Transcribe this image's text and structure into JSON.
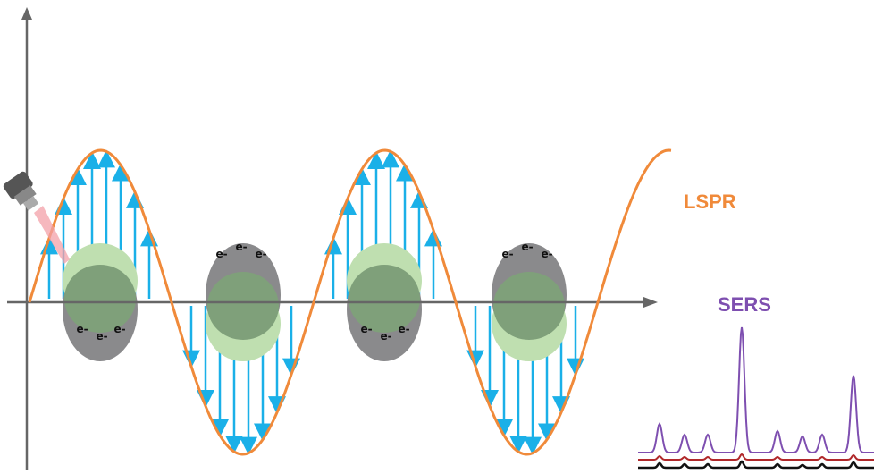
{
  "labels": {
    "lspr": "LSPR",
    "sers": "SERS"
  },
  "particles": [
    {
      "electrons": [
        "e-",
        "e-",
        "e-"
      ]
    },
    {
      "electrons": [
        "e-",
        "e-",
        "e-"
      ]
    },
    {
      "electrons": [
        "e-",
        "e-",
        "e-"
      ]
    },
    {
      "electrons": [
        "e-",
        "e-",
        "e-"
      ]
    }
  ]
}
